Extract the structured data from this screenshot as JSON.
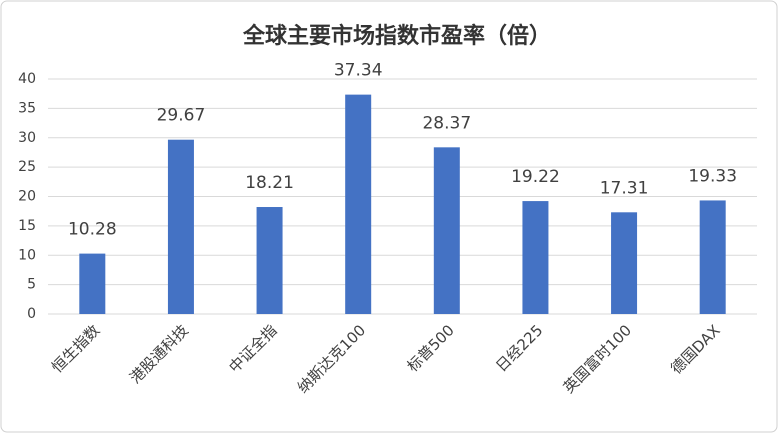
{
  "chart_data": {
    "type": "bar",
    "title": "全球主要市场指数市盈率（倍）",
    "categories": [
      "恒生指数",
      "港股通科技",
      "中证全指",
      "纳斯达克100",
      "标普500",
      "日经225",
      "英国富时100",
      "德国DAX"
    ],
    "values": [
      10.28,
      29.67,
      18.21,
      37.34,
      28.37,
      19.22,
      17.31,
      19.33
    ],
    "color": "#4472c4",
    "ylim": [
      0,
      40
    ],
    "yticks": [
      0,
      5,
      10,
      15,
      20,
      25,
      30,
      35,
      40
    ],
    "grid": true
  }
}
